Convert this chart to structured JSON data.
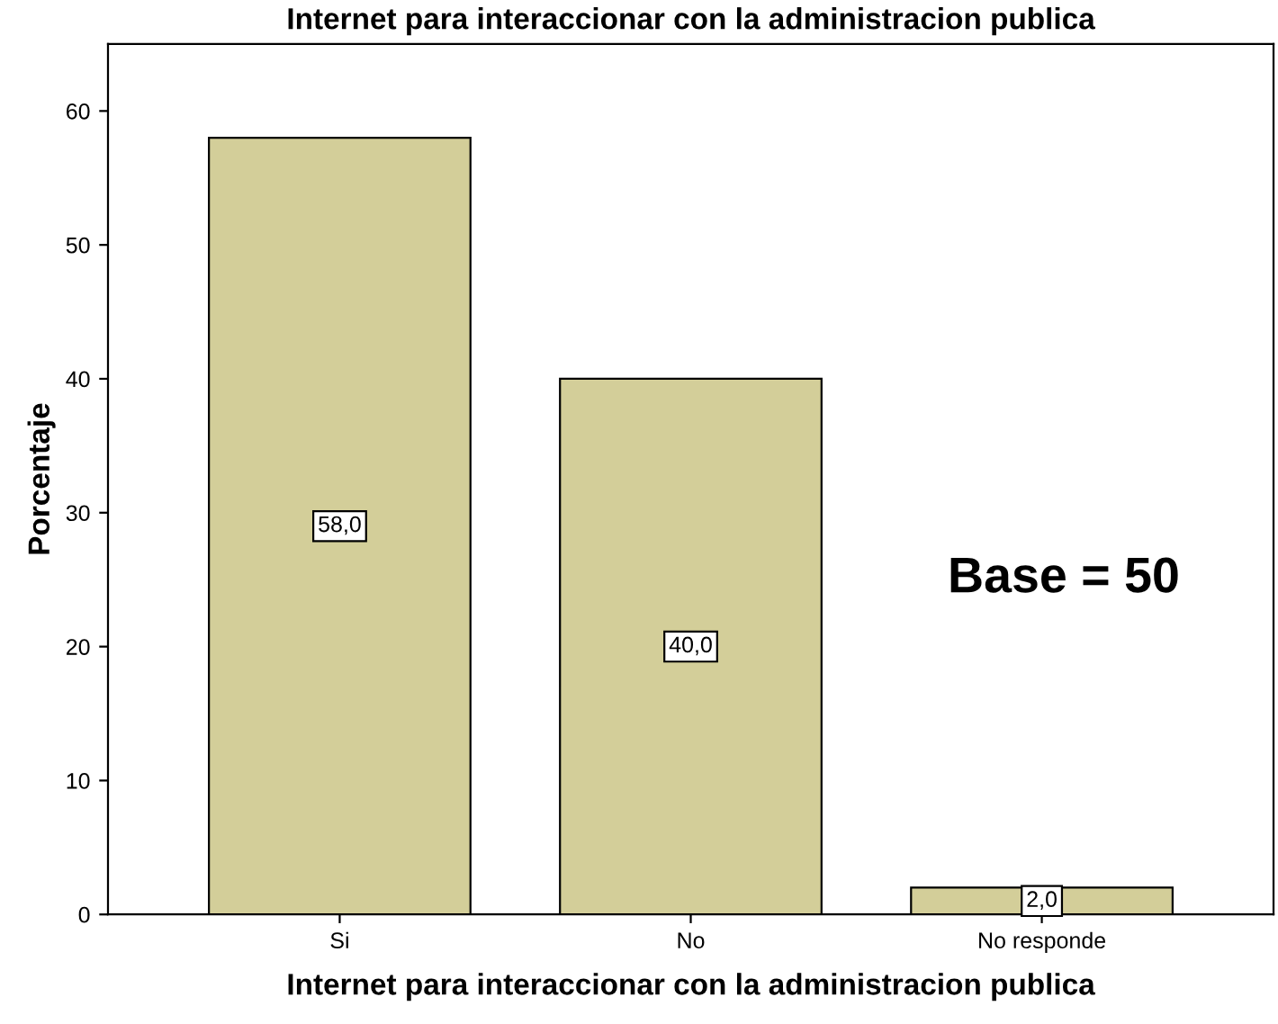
{
  "chart_data": {
    "type": "bar",
    "title": "Internet para interaccionar con la administracion publica",
    "xlabel": "Internet para interaccionar con la administracion publica",
    "ylabel": "Porcentaje",
    "categories": [
      "Si",
      "No",
      "No responde"
    ],
    "values": [
      58.0,
      40.0,
      2.0
    ],
    "value_labels": [
      "58,0",
      "40,0",
      "2,0"
    ],
    "color": "#d3ce99",
    "ylim": [
      0,
      65
    ],
    "yticks": [
      0,
      10,
      20,
      30,
      40,
      50,
      60
    ],
    "grid": false,
    "annotations": [
      "Base = 50"
    ]
  }
}
